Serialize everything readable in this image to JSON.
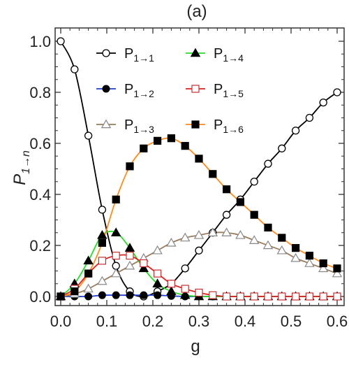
{
  "chart_data": {
    "type": "line",
    "title": "(a)",
    "xlabel": "g",
    "ylabel_main": "P",
    "ylabel_sub": "1→n",
    "xlim": [
      0,
      0.6
    ],
    "ylim": [
      0,
      1.0
    ],
    "x_ticks": [
      "0.0",
      "0.1",
      "0.2",
      "0.3",
      "0.4",
      "0.5",
      "0.6"
    ],
    "y_ticks": [
      "0.0",
      "0.2",
      "0.4",
      "0.6",
      "0.8",
      "1.0"
    ],
    "legend_placement": "top-center",
    "x": [
      0.0,
      0.03,
      0.06,
      0.09,
      0.12,
      0.15,
      0.18,
      0.21,
      0.24,
      0.27,
      0.3,
      0.33,
      0.36,
      0.39,
      0.42,
      0.45,
      0.48,
      0.51,
      0.54,
      0.57,
      0.6
    ],
    "series": [
      {
        "name": "P1→1",
        "label_main": "P",
        "label_sub": "1→1",
        "line_color": "#000000",
        "marker": "circle-open",
        "marker_color": "#000000",
        "values": [
          1.0,
          0.89,
          0.63,
          0.34,
          0.12,
          0.02,
          0.0,
          0.02,
          0.05,
          0.11,
          0.18,
          0.25,
          0.32,
          0.38,
          0.45,
          0.52,
          0.58,
          0.65,
          0.7,
          0.76,
          0.8
        ]
      },
      {
        "name": "P1→2",
        "label_main": "P",
        "label_sub": "1→2",
        "line_color": "#1f3fd6",
        "marker": "circle-filled",
        "marker_color": "#000000",
        "values": [
          0.0,
          0.0,
          0.0,
          0.005,
          0.005,
          0.005,
          0.005,
          0.005,
          0.002,
          0.0,
          0.0,
          0.0,
          0.0,
          0.0,
          0.0,
          0.0,
          0.0,
          0.0,
          0.0,
          0.0,
          0.0
        ]
      },
      {
        "name": "P1→3",
        "label_main": "P",
        "label_sub": "1→3",
        "line_color": "#9a7b5a",
        "marker": "triangle-open",
        "marker_color": "#888888",
        "values": [
          0.0,
          0.01,
          0.03,
          0.06,
          0.09,
          0.12,
          0.15,
          0.18,
          0.21,
          0.23,
          0.24,
          0.25,
          0.25,
          0.24,
          0.22,
          0.2,
          0.18,
          0.15,
          0.13,
          0.11,
          0.09
        ]
      },
      {
        "name": "P1→4",
        "label_main": "P",
        "label_sub": "1→4",
        "line_color": "#22dd22",
        "marker": "triangle-filled",
        "marker_color": "#000000",
        "values": [
          0.0,
          0.05,
          0.14,
          0.24,
          0.25,
          0.19,
          0.11,
          0.05,
          0.02,
          0.005,
          0.0,
          0.0,
          0.0,
          0.0,
          0.0,
          0.0,
          0.0,
          0.0,
          0.0,
          0.0,
          0.0
        ]
      },
      {
        "name": "P1→5",
        "label_main": "P",
        "label_sub": "1→5",
        "line_color": "#dd2020",
        "marker": "square-open",
        "marker_color": "#c33030",
        "values": [
          0.0,
          0.03,
          0.09,
          0.14,
          0.16,
          0.16,
          0.13,
          0.09,
          0.05,
          0.03,
          0.015,
          0.005,
          0.0,
          0.0,
          0.0,
          0.0,
          0.0,
          0.0,
          0.0,
          0.0,
          0.0
        ]
      },
      {
        "name": "P1→6",
        "label_main": "P",
        "label_sub": "1→6",
        "line_color": "#ff8c1a",
        "marker": "square-filled",
        "marker_color": "#000000",
        "values": [
          0.0,
          0.02,
          0.09,
          0.21,
          0.38,
          0.51,
          0.58,
          0.61,
          0.62,
          0.59,
          0.54,
          0.48,
          0.42,
          0.37,
          0.32,
          0.27,
          0.23,
          0.19,
          0.16,
          0.13,
          0.11
        ]
      }
    ]
  }
}
